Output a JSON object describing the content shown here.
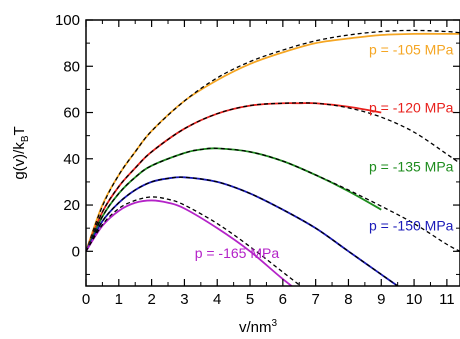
{
  "chart_data": {
    "type": "line",
    "xlabel": "v/nm",
    "xlabel_sup": "3",
    "ylabel": "g(v)/k",
    "ylabel_sub": "B",
    "ylabel_tail": "T",
    "xlim": [
      0,
      11.4
    ],
    "ylim": [
      -15,
      100
    ],
    "xticks": [
      0,
      1,
      2,
      3,
      4,
      5,
      6,
      7,
      8,
      9,
      10,
      11
    ],
    "yticks": [
      0,
      20,
      40,
      60,
      80,
      100
    ],
    "grid": false,
    "series": [
      {
        "name": "p = -105 MPa",
        "color": "#f5a623",
        "x": [
          0,
          0.5,
          1,
          1.5,
          2,
          3,
          4,
          5,
          6,
          7,
          8,
          9,
          10,
          11,
          11.4
        ],
        "y": [
          0,
          20,
          33,
          43,
          52,
          65,
          74,
          81,
          86,
          90,
          92,
          93.5,
          94,
          94,
          94
        ],
        "ref_x": [
          0,
          0.5,
          1,
          1.5,
          2,
          3,
          4,
          5,
          6,
          7,
          8,
          9,
          10,
          11,
          11.4
        ],
        "ref_y": [
          0,
          19.5,
          33,
          43,
          52,
          65,
          75,
          82,
          87,
          91,
          93.5,
          95,
          95.5,
          95,
          94.5
        ]
      },
      {
        "name": "p = -120 MPa",
        "color": "#e8201c",
        "x": [
          0,
          0.5,
          1,
          1.5,
          2,
          3,
          4,
          5,
          6,
          6.5,
          7,
          8,
          9
        ],
        "y": [
          0,
          17,
          28,
          36,
          43,
          53,
          59.5,
          63,
          64,
          64,
          64,
          62.5,
          60
        ],
        "ref_x": [
          0,
          0.5,
          1,
          1.5,
          2,
          3,
          4,
          5,
          6,
          7,
          8,
          9,
          10,
          11,
          11.4
        ],
        "ref_y": [
          0,
          17,
          28,
          36,
          43,
          53,
          59.5,
          63,
          64,
          64,
          62,
          58,
          51.5,
          42,
          38
        ]
      },
      {
        "name": "p = -135 MPa",
        "color": "#1e8c1e",
        "x": [
          0,
          0.5,
          1,
          1.5,
          2,
          3,
          3.5,
          4,
          5,
          6,
          7,
          8,
          9
        ],
        "y": [
          0,
          15,
          25,
          32,
          37,
          42.5,
          44,
          44.5,
          43,
          39,
          33,
          26,
          18
        ],
        "ref_x": [
          0,
          0.5,
          1,
          1.5,
          2,
          3,
          3.5,
          4,
          5,
          6,
          7,
          8,
          9,
          10,
          11,
          11.4
        ],
        "ref_y": [
          0,
          15,
          25,
          32,
          37,
          42.5,
          44,
          44.5,
          43,
          39,
          33,
          26.5,
          19.5,
          12,
          3,
          0
        ]
      },
      {
        "name": "p = -150 MPa",
        "color": "#1a1ab8",
        "x": [
          0,
          0.5,
          1,
          1.5,
          2,
          2.5,
          3,
          4,
          5,
          6,
          7,
          8,
          9,
          10
        ],
        "y": [
          0,
          13,
          21,
          26.5,
          30,
          31.5,
          32,
          30,
          25,
          18,
          10,
          0,
          -10,
          -20
        ],
        "ref_x": [
          0,
          0.5,
          1,
          1.5,
          2,
          2.5,
          3,
          4,
          5,
          6,
          7,
          8,
          9,
          10
        ],
        "ref_y": [
          0,
          13,
          21,
          26.5,
          30,
          31.5,
          32,
          30,
          25,
          18,
          10,
          0,
          -10,
          -20
        ]
      },
      {
        "name": "p = -165 MPa",
        "color": "#b423c8",
        "x": [
          0,
          0.5,
          1,
          1.5,
          2,
          2.5,
          3,
          4,
          5,
          6,
          7
        ],
        "y": [
          0,
          11,
          17.5,
          21,
          22,
          21,
          18.5,
          10,
          0,
          -12,
          -23
        ],
        "ref_x": [
          0,
          0.5,
          1,
          1.5,
          2,
          2.5,
          3,
          4,
          5,
          6,
          7,
          7.3
        ],
        "ref_y": [
          0,
          11.5,
          18.5,
          22,
          23.5,
          22.5,
          20,
          12,
          2,
          -9,
          -20,
          -23
        ]
      }
    ]
  }
}
